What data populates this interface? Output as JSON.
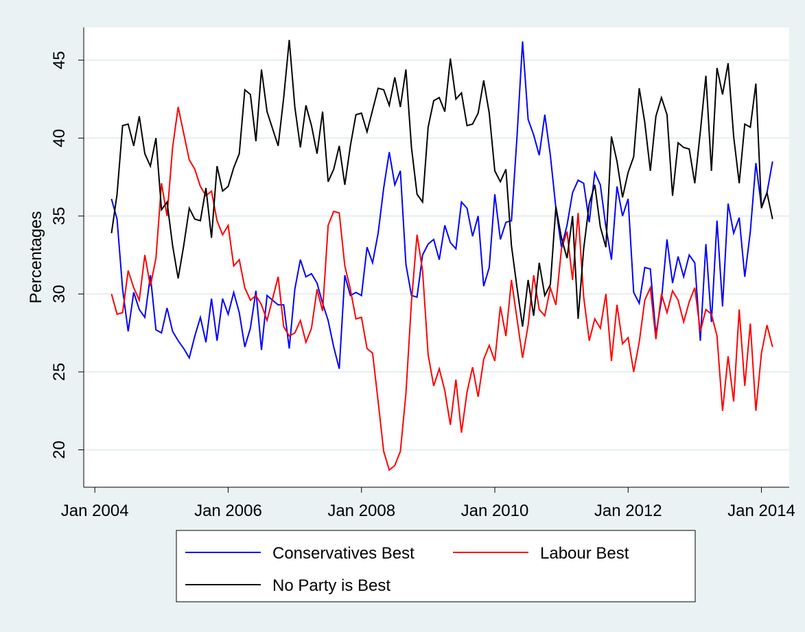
{
  "chart_data": {
    "type": "line",
    "y_label": "Percentages",
    "x": [
      "2004-04",
      "2004-05",
      "2004-06",
      "2004-07",
      "2004-08",
      "2004-09",
      "2004-10",
      "2004-11",
      "2004-12",
      "2005-01",
      "2005-02",
      "2005-03",
      "2005-04",
      "2005-05",
      "2005-06",
      "2005-07",
      "2005-08",
      "2005-09",
      "2005-10",
      "2005-11",
      "2005-12",
      "2006-01",
      "2006-02",
      "2006-03",
      "2006-04",
      "2006-05",
      "2006-06",
      "2006-07",
      "2006-08",
      "2006-09",
      "2006-10",
      "2006-11",
      "2006-12",
      "2007-01",
      "2007-02",
      "2007-03",
      "2007-04",
      "2007-05",
      "2007-06",
      "2007-07",
      "2007-08",
      "2007-09",
      "2007-10",
      "2007-11",
      "2007-12",
      "2008-01",
      "2008-02",
      "2008-03",
      "2008-04",
      "2008-05",
      "2008-06",
      "2008-07",
      "2008-08",
      "2008-09",
      "2008-10",
      "2008-11",
      "2008-12",
      "2009-01",
      "2009-02",
      "2009-03",
      "2009-04",
      "2009-05",
      "2009-06",
      "2009-07",
      "2009-08",
      "2009-09",
      "2009-10",
      "2009-11",
      "2009-12",
      "2010-01",
      "2010-02",
      "2010-03",
      "2010-04",
      "2010-05",
      "2010-06",
      "2010-07",
      "2010-08",
      "2010-09",
      "2010-10",
      "2010-11",
      "2010-12",
      "2011-01",
      "2011-02",
      "2011-03",
      "2011-04",
      "2011-05",
      "2011-06",
      "2011-07",
      "2011-08",
      "2011-09",
      "2011-10",
      "2011-11",
      "2011-12",
      "2012-01",
      "2012-02",
      "2012-03",
      "2012-04",
      "2012-05",
      "2012-06",
      "2012-07",
      "2012-08",
      "2012-09",
      "2012-10",
      "2012-11",
      "2012-12",
      "2013-01",
      "2013-02",
      "2013-03",
      "2013-04",
      "2013-05",
      "2013-06",
      "2013-07",
      "2013-08",
      "2013-09",
      "2013-10",
      "2013-11",
      "2013-12",
      "2014-01",
      "2014-02",
      "2014-03"
    ],
    "series": [
      {
        "name": "Conservatives Best",
        "color": "#0000ff",
        "values": [
          36.1,
          34.8,
          30.3,
          27.6,
          30.1,
          29.0,
          28.5,
          31.2,
          27.7,
          27.5,
          29.1,
          27.6,
          27.0,
          26.5,
          25.9,
          27.3,
          28.5,
          26.9,
          29.7,
          27.0,
          29.7,
          28.7,
          30.1,
          28.8,
          26.6,
          27.8,
          30.2,
          26.4,
          29.9,
          29.6,
          29.3,
          29.3,
          26.5,
          30.3,
          32.2,
          31.1,
          31.3,
          30.7,
          29.4,
          28.3,
          26.6,
          25.2,
          31.2,
          29.9,
          30.1,
          29.9,
          33.0,
          32.0,
          33.9,
          36.8,
          39.1,
          37.0,
          37.9,
          31.9,
          29.9,
          29.8,
          32.5,
          33.2,
          33.5,
          32.2,
          34.4,
          33.3,
          32.9,
          35.9,
          35.5,
          33.7,
          35.0,
          30.5,
          31.7,
          36.4,
          33.5,
          34.6,
          34.7,
          40.1,
          46.2,
          41.2,
          40.2,
          38.9,
          41.5,
          38.9,
          35.5,
          33.0,
          34.4,
          36.5,
          37.3,
          37.1,
          34.6,
          37.8,
          37.0,
          34.3,
          32.2,
          36.9,
          35.0,
          36.1,
          30.1,
          29.4,
          31.7,
          31.6,
          27.4,
          29.6,
          33.5,
          30.7,
          32.4,
          31.1,
          32.5,
          32.0,
          27.0,
          33.2,
          28.2,
          34.7,
          29.2,
          35.8,
          33.9,
          34.9,
          31.1,
          34.0,
          38.4,
          35.6,
          36.5,
          38.5
        ]
      },
      {
        "name": "Labour Best",
        "color": "#ff0000",
        "values": [
          30.0,
          28.7,
          28.8,
          31.5,
          30.4,
          29.6,
          32.5,
          30.5,
          32.3,
          37.1,
          35.0,
          39.4,
          42.0,
          40.3,
          38.6,
          38.0,
          36.9,
          36.3,
          36.6,
          34.7,
          33.8,
          34.4,
          31.8,
          32.2,
          30.4,
          29.6,
          29.9,
          29.3,
          28.3,
          29.7,
          31.1,
          27.9,
          27.3,
          27.5,
          28.3,
          26.9,
          27.8,
          30.3,
          28.9,
          34.4,
          35.3,
          35.2,
          31.8,
          30.3,
          28.4,
          28.5,
          26.5,
          26.2,
          23.1,
          19.9,
          18.7,
          19.0,
          19.9,
          23.6,
          29.5,
          33.8,
          31.5,
          26.1,
          24.1,
          25.2,
          23.8,
          21.6,
          24.5,
          21.1,
          23.7,
          25.3,
          23.4,
          25.8,
          26.7,
          25.7,
          29.2,
          27.3,
          30.9,
          28.4,
          25.9,
          28.0,
          31.2,
          29.0,
          28.6,
          30.4,
          29.3,
          32.9,
          34.0,
          30.9,
          35.2,
          29.8,
          27.0,
          28.4,
          27.8,
          30.0,
          25.7,
          29.3,
          26.8,
          27.2,
          25.0,
          26.9,
          29.6,
          30.4,
          27.1,
          30.0,
          28.8,
          30.2,
          29.6,
          28.2,
          29.5,
          30.4,
          27.6,
          29.0,
          28.7,
          27.3,
          22.5,
          26.0,
          23.1,
          29.0,
          24.1,
          28.1,
          22.5,
          26.2,
          28.0,
          26.6
        ]
      },
      {
        "name": "No Party is Best",
        "color": "#000000",
        "values": [
          33.9,
          36.4,
          40.8,
          40.9,
          39.5,
          41.4,
          39.0,
          38.2,
          40.0,
          35.4,
          35.9,
          33.1,
          31.0,
          33.1,
          35.5,
          34.8,
          34.7,
          36.8,
          33.6,
          38.2,
          36.6,
          36.9,
          38.1,
          39.0,
          43.1,
          42.8,
          39.8,
          44.4,
          41.7,
          40.6,
          39.5,
          42.6,
          46.3,
          42.0,
          39.4,
          42.1,
          40.8,
          39.0,
          41.7,
          37.2,
          38.0,
          39.5,
          37.0,
          39.5,
          41.5,
          41.6,
          40.4,
          41.8,
          43.2,
          43.1,
          42.1,
          43.9,
          42.0,
          44.4,
          39.4,
          36.4,
          35.9,
          40.7,
          42.4,
          42.6,
          41.7,
          45.1,
          42.5,
          42.9,
          40.8,
          40.9,
          41.6,
          43.7,
          41.6,
          37.9,
          37.2,
          38.0,
          33.1,
          30.4,
          27.9,
          30.9,
          28.6,
          32.0,
          29.9,
          30.6,
          35.6,
          33.6,
          32.3,
          35.0,
          28.4,
          32.9,
          35.8,
          37.0,
          34.3,
          33.0,
          40.1,
          38.5,
          36.2,
          37.8,
          38.8,
          43.2,
          41.0,
          37.9,
          41.4,
          42.6,
          41.5,
          36.3,
          39.7,
          39.4,
          39.3,
          37.1,
          40.4,
          44.0,
          37.9,
          44.5,
          42.8,
          44.8,
          40.1,
          37.1,
          40.9,
          40.7,
          43.5,
          35.5,
          36.5,
          34.8
        ]
      }
    ],
    "xlim": [
      "2003-11",
      "2014-06"
    ],
    "xticks": [
      {
        "value": "2004-01",
        "label": "Jan 2004"
      },
      {
        "value": "2006-01",
        "label": "Jan 2006"
      },
      {
        "value": "2008-01",
        "label": "Jan 2008"
      },
      {
        "value": "2010-01",
        "label": "Jan 2010"
      },
      {
        "value": "2012-01",
        "label": "Jan 2012"
      },
      {
        "value": "2014-01",
        "label": "Jan 2014"
      }
    ],
    "ylim": [
      17.6,
      47.1
    ],
    "yticks": [
      20,
      25,
      30,
      35,
      40,
      45
    ],
    "grid": true
  }
}
